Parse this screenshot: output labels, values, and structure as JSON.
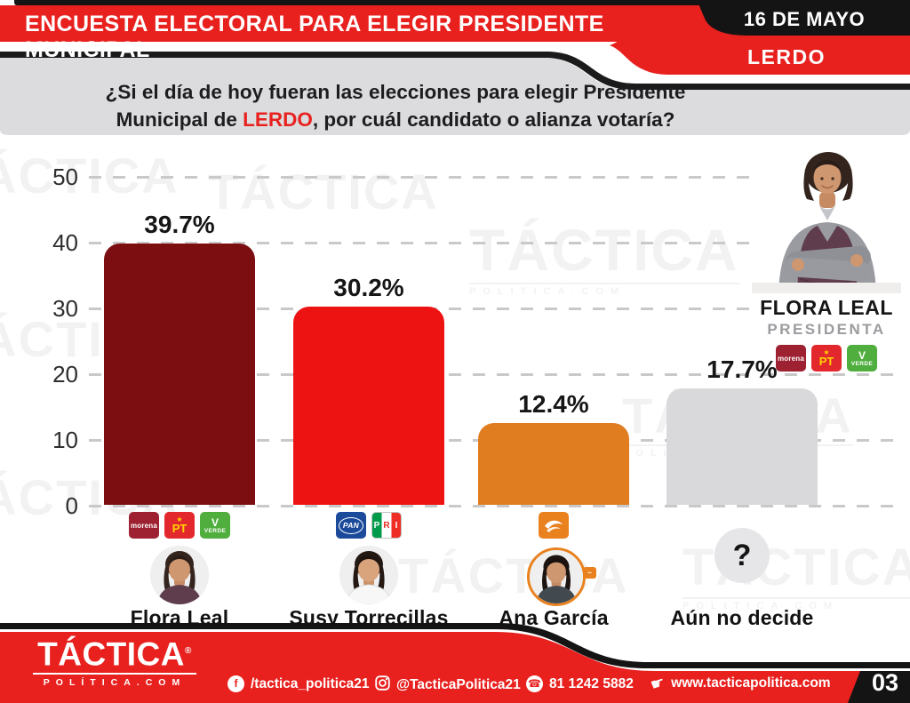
{
  "header": {
    "title": "ENCUESTA ELECTORAL PARA ELEGIR PRESIDENTE MUNICIPAL",
    "date": "16 DE MAYO",
    "municipality": "LERDO"
  },
  "question": {
    "line1": "¿Si el día de hoy fueran las elecciones para elegir Presidente",
    "line2_before": "Municipal de ",
    "line2_highlight": "LERDO",
    "line2_after": ", por cuál candidato o alianza votaría?"
  },
  "chart_data": {
    "type": "bar",
    "categories": [
      "Flora Leal",
      "Susy Torrecillas",
      "Ana García",
      "Aún no decide"
    ],
    "values": [
      39.7,
      30.2,
      12.4,
      17.7
    ],
    "value_labels": [
      "39.7%",
      "30.2%",
      "12.4%",
      "17.7%"
    ],
    "bar_colors": [
      "#7c0e11",
      "#ee1313",
      "#e07d20",
      "#d9d9db"
    ],
    "yticks": [
      0,
      10,
      20,
      30,
      40,
      50
    ],
    "ylim": [
      0,
      50
    ],
    "grid": "dashed horizontal gridlines",
    "legend": "none",
    "candidate_parties": [
      [
        "morena",
        "PT",
        "VERDE"
      ],
      [
        "PAN",
        "PRI"
      ],
      [
        "Movimiento Ciudadano"
      ],
      []
    ]
  },
  "promo": {
    "name": "FLORA LEAL",
    "role": "PRESIDENTA",
    "parties": [
      "morena",
      "PT",
      "VERDE"
    ]
  },
  "party_logos": {
    "morena": "morena",
    "pt": "PT",
    "pt_star": "★",
    "verde": "VERDE",
    "verde_mark": "V",
    "pan": "PAN",
    "pri_letters": [
      "P",
      "R",
      "I"
    ]
  },
  "undecided_mark": "?",
  "footer": {
    "brand": "TÁCTICA",
    "brand_reg": "®",
    "brand_sub": "POLÍTICA.COM",
    "facebook": "/tactica_politica21",
    "facebook_icon": "f",
    "instagram": "@TacticaPolitica21",
    "phone": "81 1242 5882",
    "phone_icon": "☎",
    "website": "www.tacticapolitica.com",
    "website_icon": "☛",
    "page_number": "03"
  },
  "watermark": {
    "big": "TÁCTICA",
    "small": "POLITICA.COM"
  },
  "colors": {
    "brand_red": "#e8211f",
    "black": "#141414",
    "panel_gray": "#dcdcde"
  }
}
